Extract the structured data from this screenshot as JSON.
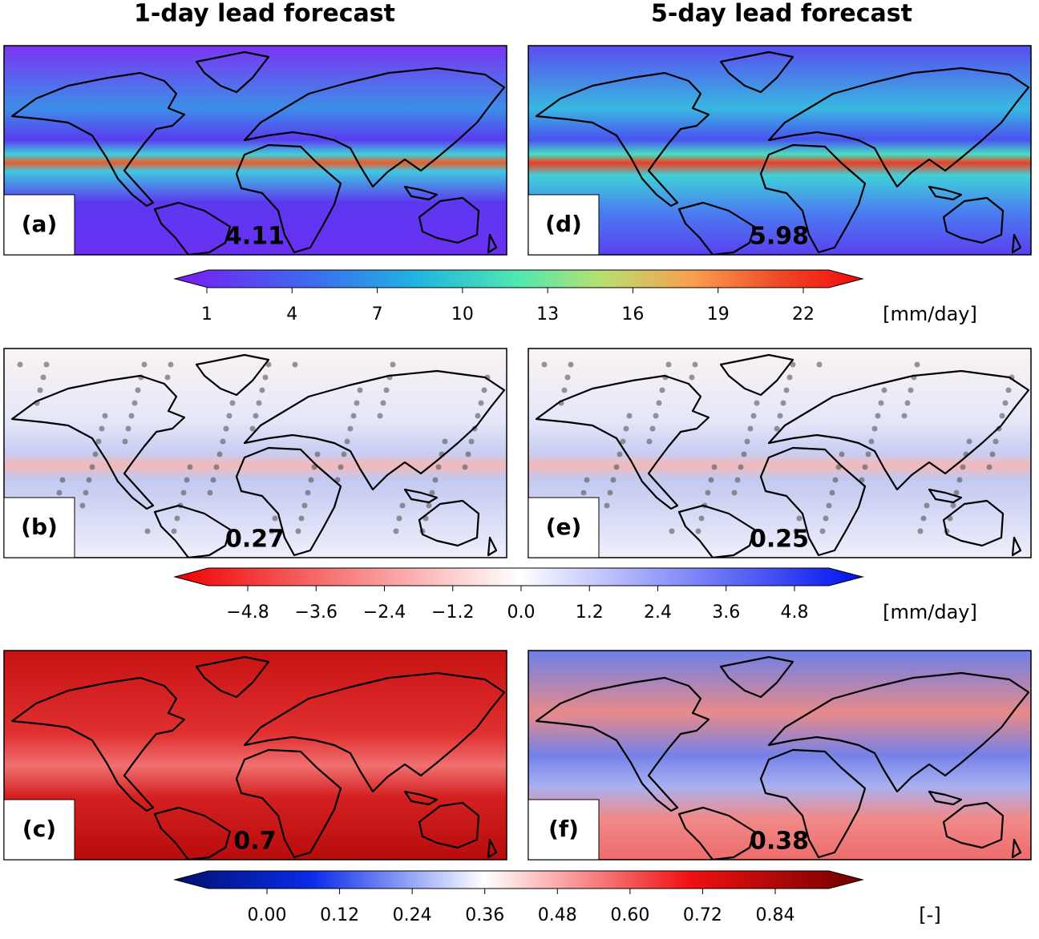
{
  "column_titles": [
    "1-day lead forecast",
    "5-day lead forecast"
  ],
  "panels": [
    {
      "label": "(a)",
      "value": "4.11"
    },
    {
      "label": "(b)",
      "value": "0.27"
    },
    {
      "label": "(c)",
      "value": "0.7"
    },
    {
      "label": "(d)",
      "value": "5.98"
    },
    {
      "label": "(e)",
      "value": "0.25"
    },
    {
      "label": "(f)",
      "value": "0.38"
    }
  ],
  "colorbars": [
    {
      "ticks": [
        "1",
        "4",
        "7",
        "10",
        "13",
        "16",
        "19",
        "22"
      ],
      "unit": "[mm/day]"
    },
    {
      "ticks": [
        "−4.8",
        "−3.6",
        "−2.4",
        "−1.2",
        "0.0",
        "1.2",
        "2.4",
        "3.6",
        "4.8"
      ],
      "unit": "[mm/day]"
    },
    {
      "ticks": [
        "0.00",
        "0.12",
        "0.24",
        "0.36",
        "0.48",
        "0.60",
        "0.72",
        "0.84"
      ],
      "unit": "[-]"
    }
  ]
}
